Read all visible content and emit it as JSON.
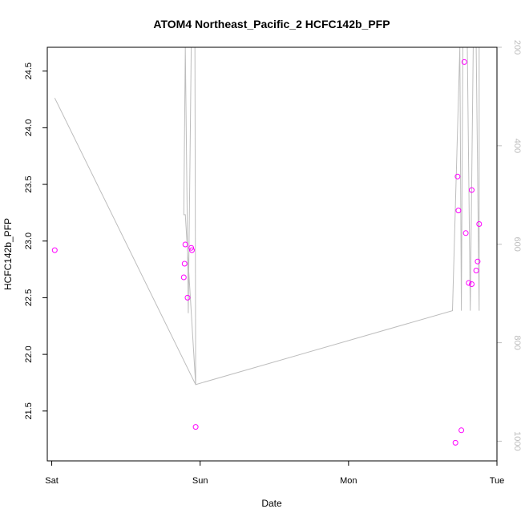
{
  "chart_data": {
    "type": "scatter",
    "title": "ATOM4 Northeast_Pacific_2 HCFC142b_PFP",
    "xlabel": "Date",
    "ylabel": "HCFC142b_PFP",
    "x_ticks": [
      "Sat",
      "Sun",
      "Mon",
      "Tue"
    ],
    "x_range_days": [
      -0.03,
      3.0
    ],
    "ylim": [
      21.06,
      24.71
    ],
    "y_ticks": [
      21.5,
      22.0,
      22.5,
      23.0,
      23.5,
      24.0,
      24.5
    ],
    "y_tick_labels": [
      "21.5",
      "22.0",
      "22.5",
      "23.0",
      "23.5",
      "24.0",
      "24.5"
    ],
    "y2_lim": [
      1040,
      200
    ],
    "y2_ticks": [
      200,
      400,
      600,
      800,
      1000
    ],
    "y2_tick_labels": [
      "200",
      "400",
      "600",
      "800",
      "1000"
    ],
    "grid": false,
    "series": [
      {
        "kind": "points",
        "color": "#ff00ff",
        "axis": "left",
        "points": [
          {
            "x": 0.02,
            "y": 22.92
          },
          {
            "x": 0.89,
            "y": 22.68
          },
          {
            "x": 0.895,
            "y": 22.8
          },
          {
            "x": 0.9,
            "y": 22.97
          },
          {
            "x": 0.915,
            "y": 22.5
          },
          {
            "x": 0.94,
            "y": 22.94
          },
          {
            "x": 0.945,
            "y": 22.92
          },
          {
            "x": 0.97,
            "y": 21.36
          },
          {
            "x": 2.72,
            "y": 21.22
          },
          {
            "x": 2.735,
            "y": 23.57
          },
          {
            "x": 2.74,
            "y": 23.27
          },
          {
            "x": 2.76,
            "y": 21.33
          },
          {
            "x": 2.78,
            "y": 24.58
          },
          {
            "x": 2.79,
            "y": 23.07
          },
          {
            "x": 2.81,
            "y": 22.63
          },
          {
            "x": 2.83,
            "y": 23.45
          },
          {
            "x": 2.83,
            "y": 22.62
          },
          {
            "x": 2.86,
            "y": 22.74
          },
          {
            "x": 2.87,
            "y": 22.82
          },
          {
            "x": 2.88,
            "y": 23.15
          }
        ]
      },
      {
        "kind": "line",
        "color": "#bdbdbd",
        "axis": "right",
        "points": [
          {
            "x": 0.02,
            "y": 303
          },
          {
            "x": 0.97,
            "y": 885
          },
          {
            "x": 0.965,
            "y": 200
          },
          {
            "x": 0.94,
            "y": 200
          },
          {
            "x": 0.92,
            "y": 740
          },
          {
            "x": 0.9,
            "y": 200
          },
          {
            "x": 0.89,
            "y": 540
          },
          {
            "x": 0.9,
            "y": 540
          },
          {
            "x": 0.97,
            "y": 885
          },
          {
            "x": 2.7,
            "y": 735
          },
          {
            "x": 2.75,
            "y": 200
          },
          {
            "x": 2.76,
            "y": 735
          },
          {
            "x": 2.77,
            "y": 200
          },
          {
            "x": 2.8,
            "y": 200
          },
          {
            "x": 2.82,
            "y": 735
          },
          {
            "x": 2.84,
            "y": 200
          },
          {
            "x": 2.86,
            "y": 200
          },
          {
            "x": 2.88,
            "y": 735
          },
          {
            "x": 2.88,
            "y": 200
          }
        ]
      }
    ]
  }
}
